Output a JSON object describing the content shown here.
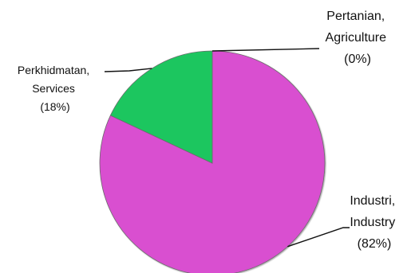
{
  "chart_data": {
    "type": "pie",
    "title": "",
    "slices": [
      {
        "name_lines": [
          "Industri,",
          "Industry"
        ],
        "value_label": "(82%)",
        "value": 82,
        "color": "#d94fd0"
      },
      {
        "name_lines": [
          "Perkhidmatan,",
          "Services"
        ],
        "value_label": "(18%)",
        "value": 18,
        "color": "#1cc65f"
      },
      {
        "name_lines": [
          "Pertanian,",
          "Agriculture"
        ],
        "value_label": "(0%)",
        "value": 0,
        "color": "#9a9a9a"
      }
    ],
    "legend": "none",
    "start_angle": "12 o'clock",
    "direction": "clockwise",
    "label_position": "outside with leader lines"
  }
}
